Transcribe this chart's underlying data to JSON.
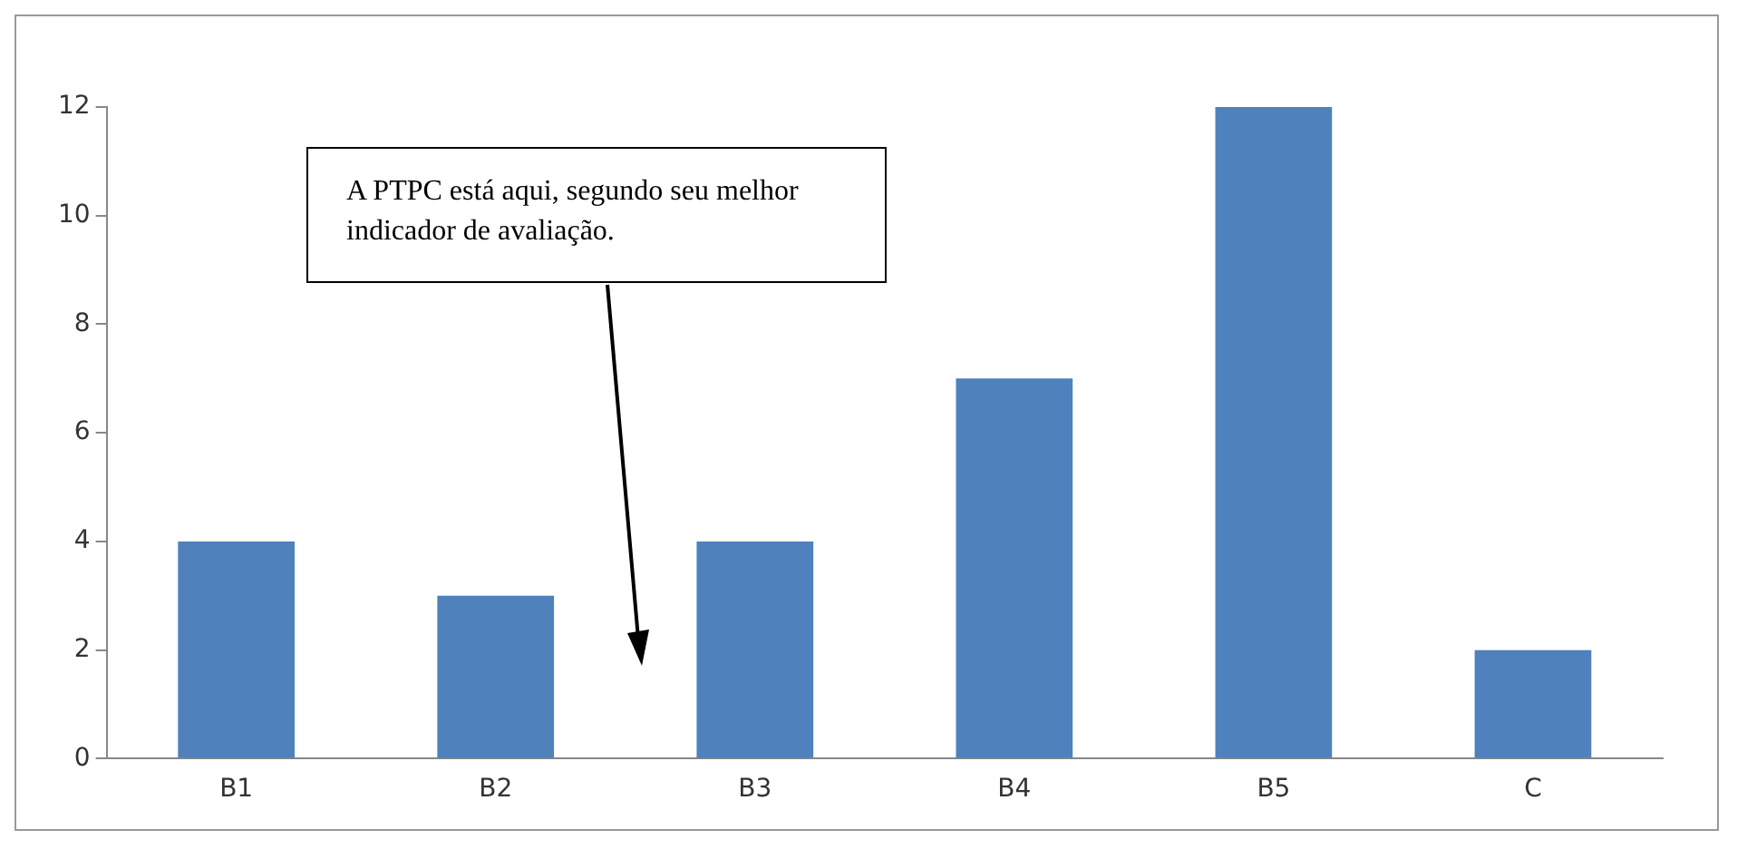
{
  "chart_data": {
    "type": "bar",
    "categories": [
      "B1",
      "B2",
      "B3",
      "B4",
      "B5",
      "C"
    ],
    "values": [
      4,
      3,
      4,
      7,
      12,
      2
    ],
    "color": "#4f81bd",
    "ylim": [
      0,
      12
    ],
    "yticks": [
      0,
      2,
      4,
      6,
      8,
      10,
      12
    ],
    "grid": false,
    "annotations": [
      "A PTPC está aqui, segundo seu melhor indicador de avaliação."
    ]
  }
}
